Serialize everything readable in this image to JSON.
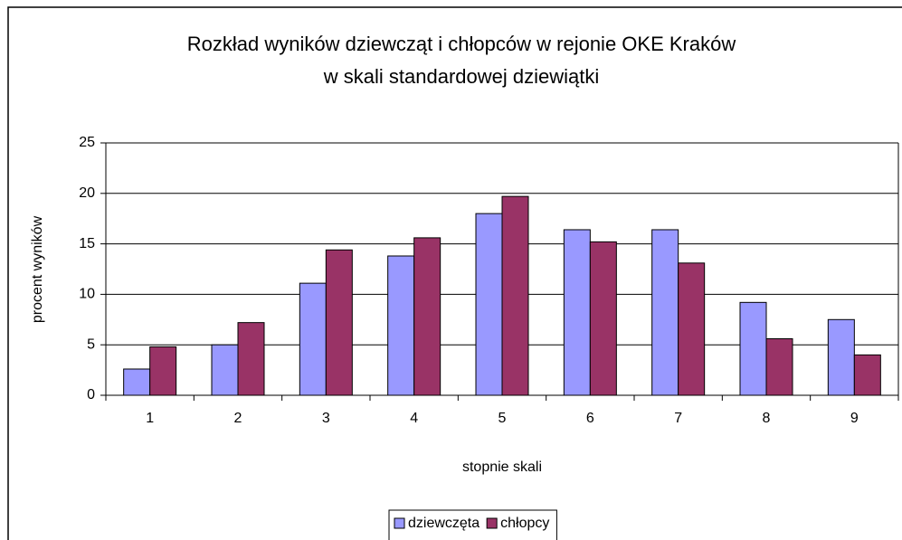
{
  "chart_data": {
    "type": "bar",
    "title": [
      "Rozkład wyników dziewcząt i chłopców w rejonie OKE Kraków",
      "w skali standardowej dziewiątki"
    ],
    "x_label": "stopnie skali",
    "y_label": "procent wyników",
    "categories": [
      "1",
      "2",
      "3",
      "4",
      "5",
      "6",
      "7",
      "8",
      "9"
    ],
    "series": [
      {
        "name": "dziewczęta",
        "color": "#9999ff",
        "values": [
          2.6,
          5.0,
          11.1,
          13.8,
          18.0,
          16.4,
          16.4,
          9.2,
          7.5
        ]
      },
      {
        "name": "chłopcy",
        "color": "#993366",
        "values": [
          4.8,
          7.2,
          14.4,
          15.6,
          19.7,
          15.2,
          13.1,
          5.6,
          4.0
        ]
      }
    ],
    "ylim": [
      0,
      25
    ],
    "yticks": [
      0,
      5,
      10,
      15,
      20,
      25
    ],
    "grid": true,
    "legend": "bottom"
  }
}
